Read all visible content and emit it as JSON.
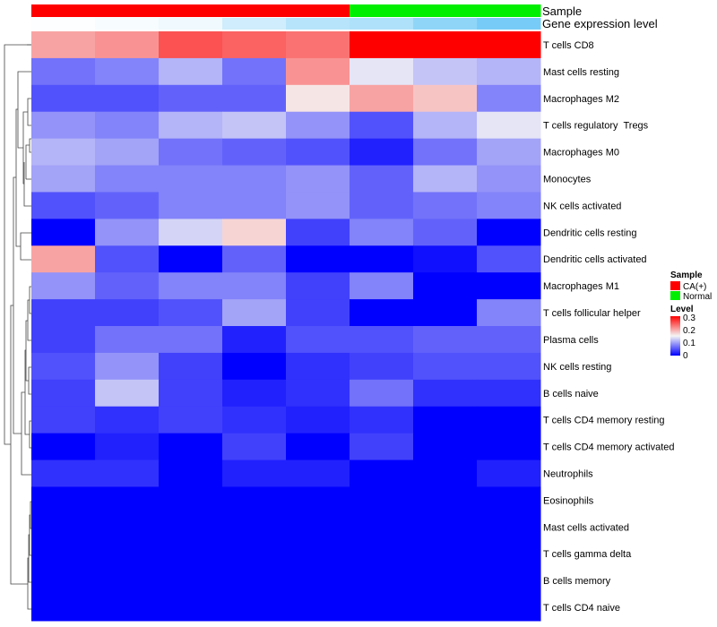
{
  "chart_data": {
    "type": "heatmap",
    "title": "",
    "annotations": {
      "sample_label": "Sample",
      "gene_label": "Gene expression level",
      "sample_groups": [
        "CA(+)",
        "CA(+)",
        "CA(+)",
        "CA(+)",
        "CA(+)",
        "Normal",
        "Normal",
        "Normal"
      ],
      "gene_expression": [
        0.02,
        0.05,
        0.1,
        0.3,
        0.45,
        0.5,
        0.7,
        0.85
      ]
    },
    "rows": [
      "T cells CD8",
      "Mast cells resting",
      "Macrophages M2",
      "T cells regulatory  Tregs",
      "Macrophages M0",
      "Monocytes",
      "NK cells activated",
      "Dendritic cells resting",
      "Dendritic cells activated",
      "Macrophages M1",
      "T cells follicular helper",
      "Plasma cells",
      "NK cells resting",
      "B cells naive",
      "T cells CD4 memory resting",
      "T cells CD4 memory activated",
      "Neutrophils",
      "Eosinophils",
      "Mast cells activated",
      "T cells gamma delta",
      "B cells memory",
      "T cells CD4 naive"
    ],
    "values": [
      [
        0.2,
        0.21,
        0.25,
        0.24,
        0.23,
        0.3,
        0.3,
        0.3
      ],
      [
        0.07,
        0.08,
        0.11,
        0.07,
        0.21,
        0.14,
        0.12,
        0.11
      ],
      [
        0.05,
        0.05,
        0.06,
        0.06,
        0.16,
        0.2,
        0.18,
        0.08
      ],
      [
        0.09,
        0.08,
        0.11,
        0.12,
        0.09,
        0.05,
        0.11,
        0.14
      ],
      [
        0.11,
        0.1,
        0.07,
        0.06,
        0.05,
        0.02,
        0.07,
        0.1
      ],
      [
        0.1,
        0.08,
        0.08,
        0.08,
        0.09,
        0.06,
        0.11,
        0.09
      ],
      [
        0.05,
        0.06,
        0.08,
        0.08,
        0.09,
        0.06,
        0.07,
        0.08
      ],
      [
        0.0,
        0.09,
        0.13,
        0.17,
        0.04,
        0.08,
        0.06,
        0.0
      ],
      [
        0.2,
        0.05,
        0.0,
        0.06,
        0.0,
        0.0,
        0.01,
        0.05
      ],
      [
        0.09,
        0.06,
        0.08,
        0.08,
        0.04,
        0.08,
        0.0,
        0.0
      ],
      [
        0.04,
        0.04,
        0.05,
        0.1,
        0.04,
        0.0,
        0.0,
        0.08
      ],
      [
        0.04,
        0.07,
        0.07,
        0.02,
        0.05,
        0.05,
        0.06,
        0.06
      ],
      [
        0.05,
        0.09,
        0.04,
        0.0,
        0.03,
        0.04,
        0.05,
        0.05
      ],
      [
        0.04,
        0.12,
        0.04,
        0.02,
        0.03,
        0.07,
        0.03,
        0.03
      ],
      [
        0.04,
        0.03,
        0.04,
        0.03,
        0.02,
        0.03,
        0.0,
        0.0
      ],
      [
        0.0,
        0.02,
        0.0,
        0.04,
        0.0,
        0.04,
        0.0,
        0.0
      ],
      [
        0.03,
        0.03,
        0.0,
        0.02,
        0.02,
        0.0,
        0.0,
        0.02
      ],
      [
        0.0,
        0.0,
        0.0,
        0.0,
        0.0,
        0.0,
        0.0,
        0.0
      ],
      [
        0.0,
        0.0,
        0.0,
        0.0,
        0.0,
        0.0,
        0.0,
        0.0
      ],
      [
        0.0,
        0.0,
        0.0,
        0.0,
        0.0,
        0.0,
        0.0,
        0.0
      ],
      [
        0.0,
        0.0,
        0.0,
        0.0,
        0.0,
        0.0,
        0.0,
        0.0
      ],
      [
        0.0,
        0.0,
        0.0,
        0.0,
        0.0,
        0.0,
        0.0,
        0.0
      ]
    ],
    "color_scale": {
      "min": 0,
      "mid": 0.15,
      "max": 0.3,
      "low_color": "#0000ff",
      "mid_color": "#f5f5f5",
      "high_color": "#ff0000"
    },
    "gene_expression_colors": {
      "low": "#ffffff",
      "high": "#5fc3f5"
    },
    "legend": {
      "sample_title": "Sample",
      "sample_items": [
        {
          "label": "CA(+)",
          "color": "#ff0000"
        },
        {
          "label": "Normal",
          "color": "#00ee00"
        }
      ],
      "level_title": "Level",
      "level_ticks": [
        "0.3",
        "0.2",
        "0.1",
        "0"
      ],
      "position": "right"
    },
    "dendrogram": "rows, left"
  }
}
